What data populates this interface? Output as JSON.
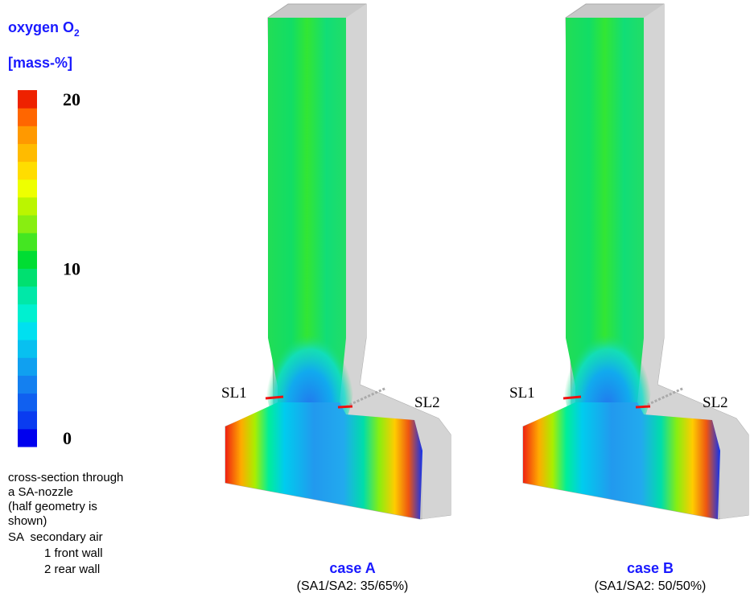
{
  "legend": {
    "title": {
      "text": "oxygen O",
      "subscript": "2"
    },
    "unit": "[mass-%]",
    "range": [
      0,
      20
    ],
    "ticks": [
      20,
      10,
      0
    ]
  },
  "notes": [
    "cross-section through",
    "a  SA-nozzle",
    "(half geometry is",
    "shown)"
  ],
  "abbreviations": {
    "title": "SA  secondary air",
    "items": [
      "1 front wall",
      "2 rear wall"
    ]
  },
  "cases": [
    {
      "label": "case A",
      "description": "(SA1/SA2: 35/65%)",
      "left_label": "SL1",
      "right_label": "SL2"
    },
    {
      "label": "case B",
      "description": "(SA1/SA2: 50/50%)",
      "left_label": "SL1",
      "right_label": "SL2"
    }
  ]
}
